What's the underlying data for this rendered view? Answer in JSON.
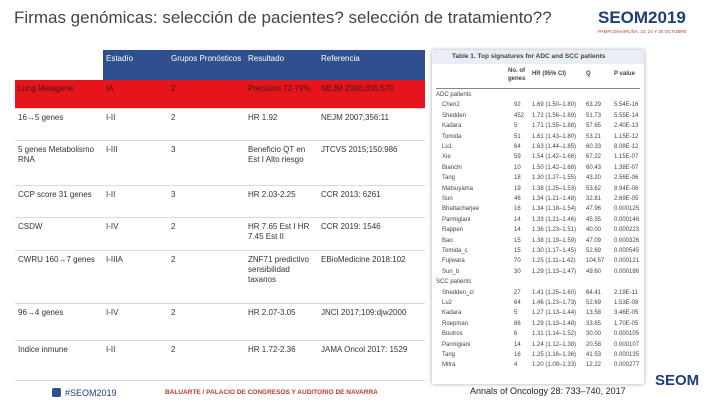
{
  "header": {
    "title": "Firmas genómicas: selección de pacientes? selección de tratamiento??",
    "logo": "SEOM2019",
    "logo_sub": "PAMPLONA/IRUÑA, 23, 24 Y 25 OCTUBRE"
  },
  "table": {
    "columns": [
      "Estadío",
      "Grupos Pronósticos",
      "Resultado",
      "Referencia"
    ],
    "rows": [
      [
        "Lung Metagene",
        "IA",
        "2",
        "Precisión 72-79%",
        "NEJM 2006;355:570"
      ],
      [
        "16→5 genes",
        "I-II",
        "2",
        "HR 1.92",
        "NEJM 2007;356:11"
      ],
      [
        "5 genes Metabolismo RNA",
        "I-III",
        "3",
        "Beneficio QT en Est I Alto riesgo",
        "JTCVS 2015;150:986"
      ],
      [
        "CCP score 31 genes",
        "I-II",
        "3",
        "HR 2.03-2.25",
        "CCR 2013: 6261"
      ],
      [
        "CSDW",
        "I-IV",
        "2",
        "HR 7.65 Est I HR 7.45 Est II",
        "CCR 2019: 1546"
      ],
      [
        "CWRU 160→7 genes",
        "I-IIIA",
        "2",
        "ZNF71 predictivo sensibilidad taxanos",
        "EBioMedicine 2018:102"
      ],
      [
        "96→4 genes",
        "I-IV",
        "2",
        "HR 2.07-3.05",
        "JNCI 2017;109:djw2000"
      ],
      [
        "Indice inmune",
        "I-II",
        "2",
        "HR 1.72-2.36",
        "JAMA Oncol 2017: 1529"
      ]
    ]
  },
  "figure": {
    "title": "Table 1. Top signatures for ADC and SCC patients",
    "columns": [
      "No. of genes",
      "HR (95% CI)",
      "Q",
      "P value"
    ],
    "sections": [
      {
        "label": "ADC patients",
        "rows": [
          [
            "Chen2",
            "92",
            "1.69 (1.50–1.80)",
            "63.29",
            "5.54E-16"
          ],
          [
            "Shedden",
            "452",
            "1.72 (1.56–1.89)",
            "51.73",
            "5.55E-14"
          ],
          [
            "Kadara",
            "5",
            "1.71 (1.55–1.88)",
            "57.65",
            "2.40E-13"
          ],
          [
            "Tomida",
            "51",
            "1.61 (1.43–1.80)",
            "53.21",
            "1.15E-12"
          ],
          [
            "Lu1",
            "64",
            "1.63 (1.44–1.85)",
            "60.33",
            "8.08E-12"
          ],
          [
            "Xie",
            "59",
            "1.54 (1.42–1.66)",
            "67.22",
            "1.15E-07"
          ],
          [
            "Bianchi",
            "10",
            "1.50 (1.42–1.68)",
            "60.43",
            "1.38E-07"
          ],
          [
            "Tang",
            "18",
            "1.30 (1.27–1.55)",
            "43.20",
            "2.56E-06"
          ],
          [
            "Matsuyama",
            "19",
            "1.38 (1.25–1.53)",
            "53.62",
            "8.94E-06"
          ],
          [
            "Sun",
            "46",
            "1.34 (1.21–1.48)",
            "32.81",
            "2.69E-05"
          ],
          [
            "Bhattacharjee",
            "16",
            "1.34 (1.18–1.54)",
            "47.96",
            "0.000125"
          ],
          [
            "Parmigiani",
            "14",
            "1.33 (1.21–1.46)",
            "45.35",
            "0.000146"
          ],
          [
            "Rappen",
            "14",
            "1.36 (1.23–1.51)",
            "40.00",
            "0.000223"
          ],
          [
            "Bao",
            "15",
            "1.38 (1.19–1.59)",
            "47.09",
            "0.000326"
          ],
          [
            "Tomida_c",
            "15",
            "1.30 (1.17–1.45)",
            "52.69",
            "0.000545"
          ],
          [
            "Fujiwara",
            "70",
            "1.25 (1.11–1.42)",
            "104.57",
            "0.000121"
          ],
          [
            "Sun_b",
            "30",
            "1.29 (1.13–1.47)",
            "49.60",
            "0.000186"
          ]
        ]
      },
      {
        "label": "SCC patients",
        "rows": [
          [
            "Shedden_cl",
            "27",
            "1.41 (1.25–1.60)",
            "84.41",
            "2.19E-11"
          ],
          [
            "Lu2",
            "64",
            "1.46 (1.23–1.73)",
            "52.69",
            "1.53E-08"
          ],
          [
            "Kadara",
            "5",
            "1.27 (1.13–1.44)",
            "13.58",
            "3.46E-05"
          ],
          [
            "Roepman",
            "86",
            "1.29 (1.13–1.48)",
            "33.65",
            "1.70E-05"
          ],
          [
            "Boutros",
            "6",
            "1.31 (1.14–1.52)",
            "30.00",
            "0.000105"
          ],
          [
            "Parmigiani",
            "14",
            "1.24 (1.12–1.38)",
            "20.58",
            "0.000107"
          ],
          [
            "Tang",
            "16",
            "1.25 (1.16–1.36)",
            "41.53",
            "0.000135"
          ],
          [
            "Mitra",
            "4",
            "1.20 (1.09–1.33)",
            "12.22",
            "0.000277"
          ]
        ]
      }
    ]
  },
  "footer": {
    "hashtag": "#SEOM2019",
    "venue": "BALUARTE / PALACIO DE CONGRESOS Y AUDITORIO DE NAVARRA",
    "citation": "Annals of Oncology 28: 733–740, 2017",
    "logo": "SEOM"
  }
}
